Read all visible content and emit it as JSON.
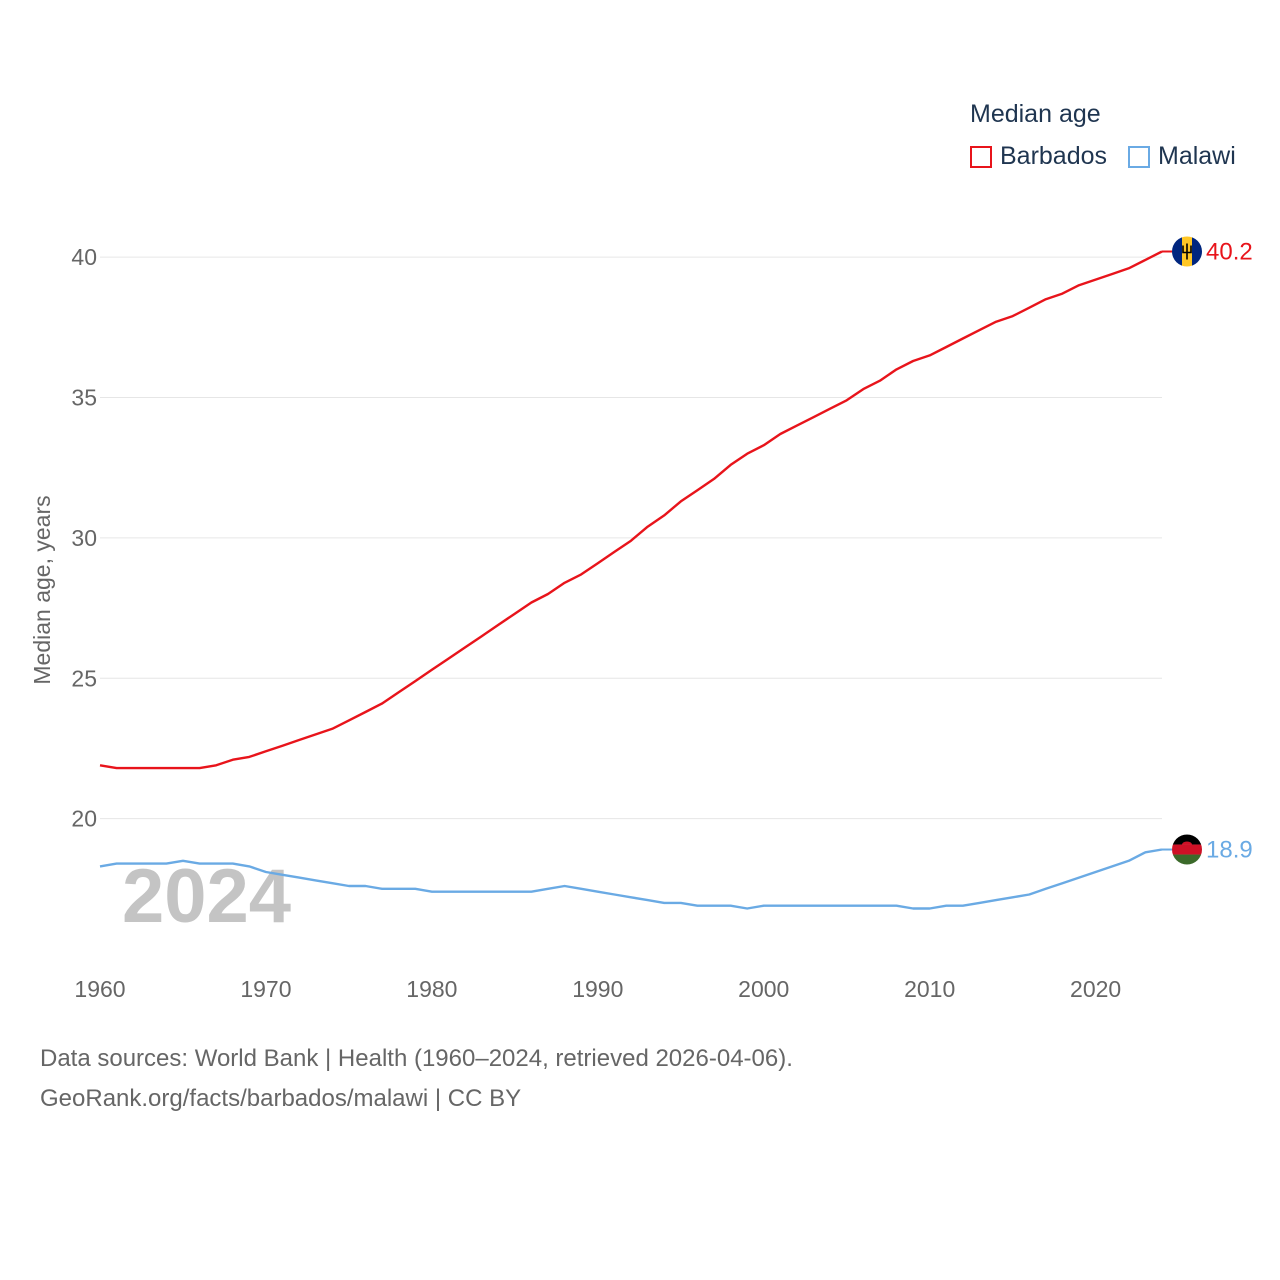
{
  "chart_data": {
    "type": "line",
    "legend_title": "Median age",
    "ylabel": "Median age, years",
    "xlabel": "",
    "xlim": [
      1960,
      2024
    ],
    "ylim": [
      15.5,
      41.5
    ],
    "yticks": [
      20,
      25,
      30,
      35,
      40
    ],
    "xticks": [
      1960,
      1970,
      1980,
      1990,
      2000,
      2010,
      2020
    ],
    "year_overlay": "2024",
    "series": [
      {
        "name": "Barbados",
        "color": "#e8141b",
        "end_label": "40.2",
        "flag": "barbados-flag",
        "x": [
          1960,
          1961,
          1962,
          1963,
          1964,
          1965,
          1966,
          1967,
          1968,
          1969,
          1970,
          1971,
          1972,
          1973,
          1974,
          1975,
          1976,
          1977,
          1978,
          1979,
          1980,
          1981,
          1982,
          1983,
          1984,
          1985,
          1986,
          1987,
          1988,
          1989,
          1990,
          1991,
          1992,
          1993,
          1994,
          1995,
          1996,
          1997,
          1998,
          1999,
          2000,
          2001,
          2002,
          2003,
          2004,
          2005,
          2006,
          2007,
          2008,
          2009,
          2010,
          2011,
          2012,
          2013,
          2014,
          2015,
          2016,
          2017,
          2018,
          2019,
          2020,
          2021,
          2022,
          2023,
          2024
        ],
        "values": [
          21.9,
          21.8,
          21.8,
          21.8,
          21.8,
          21.8,
          21.8,
          21.9,
          22.1,
          22.2,
          22.4,
          22.6,
          22.8,
          23.0,
          23.2,
          23.5,
          23.8,
          24.1,
          24.5,
          24.9,
          25.3,
          25.7,
          26.1,
          26.5,
          26.9,
          27.3,
          27.7,
          28.0,
          28.4,
          28.7,
          29.1,
          29.5,
          29.9,
          30.4,
          30.8,
          31.3,
          31.7,
          32.1,
          32.6,
          33.0,
          33.3,
          33.7,
          34.0,
          34.3,
          34.6,
          34.9,
          35.3,
          35.6,
          36.0,
          36.3,
          36.5,
          36.8,
          37.1,
          37.4,
          37.7,
          37.9,
          38.2,
          38.5,
          38.7,
          39.0,
          39.2,
          39.4,
          39.6,
          39.9,
          40.2
        ]
      },
      {
        "name": "Malawi",
        "color": "#6aaae4",
        "end_label": "18.9",
        "flag": "malawi-flag",
        "x": [
          1960,
          1961,
          1962,
          1963,
          1964,
          1965,
          1966,
          1967,
          1968,
          1969,
          1970,
          1971,
          1972,
          1973,
          1974,
          1975,
          1976,
          1977,
          1978,
          1979,
          1980,
          1981,
          1982,
          1983,
          1984,
          1985,
          1986,
          1987,
          1988,
          1989,
          1990,
          1991,
          1992,
          1993,
          1994,
          1995,
          1996,
          1997,
          1998,
          1999,
          2000,
          2001,
          2002,
          2003,
          2004,
          2005,
          2006,
          2007,
          2008,
          2009,
          2010,
          2011,
          2012,
          2013,
          2014,
          2015,
          2016,
          2017,
          2018,
          2019,
          2020,
          2021,
          2022,
          2023,
          2024
        ],
        "values": [
          18.3,
          18.4,
          18.4,
          18.4,
          18.4,
          18.5,
          18.4,
          18.4,
          18.4,
          18.3,
          18.1,
          18.0,
          17.9,
          17.8,
          17.7,
          17.6,
          17.6,
          17.5,
          17.5,
          17.5,
          17.4,
          17.4,
          17.4,
          17.4,
          17.4,
          17.4,
          17.4,
          17.5,
          17.6,
          17.5,
          17.4,
          17.3,
          17.2,
          17.1,
          17.0,
          17.0,
          16.9,
          16.9,
          16.9,
          16.8,
          16.9,
          16.9,
          16.9,
          16.9,
          16.9,
          16.9,
          16.9,
          16.9,
          16.9,
          16.8,
          16.8,
          16.9,
          16.9,
          17.0,
          17.1,
          17.2,
          17.3,
          17.5,
          17.7,
          17.9,
          18.1,
          18.3,
          18.5,
          18.8,
          18.9
        ]
      }
    ]
  },
  "footer": {
    "line1": "Data sources: World Bank | Health (1960–2024, retrieved 2026-04-06).",
    "line2": "GeoRank.org/facts/barbados/malawi | CC BY"
  }
}
